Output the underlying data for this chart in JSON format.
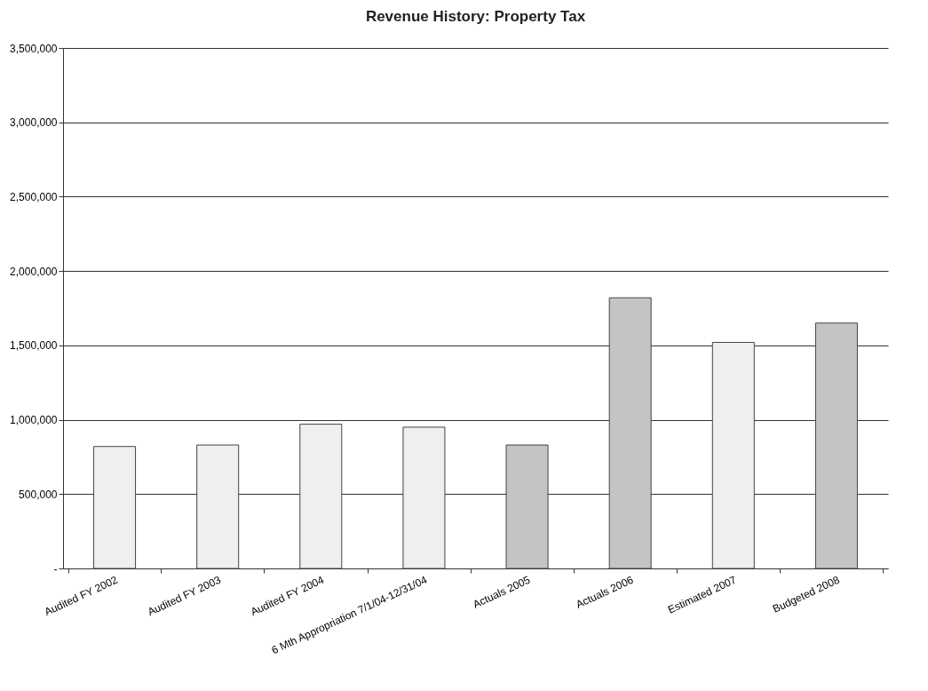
{
  "chart_data": {
    "type": "bar",
    "title": "Revenue History: Property Tax",
    "categories": [
      "Audited FY 2002",
      "Audited FY 2003",
      "Audited FY 2004",
      "6 Mth Appropriation  7/1/04-12/31/04",
      "Actuals 2005",
      "Actuals 2006",
      "Estimated 2007",
      "Budgeted 2008"
    ],
    "values": [
      820000,
      830000,
      970000,
      950000,
      830000,
      1820000,
      1520000,
      1650000
    ],
    "colors": [
      "#efefef",
      "#efefef",
      "#efefef",
      "#efefef",
      "#c4c4c4",
      "#c4c4c4",
      "#efefef",
      "#c4c4c4"
    ],
    "ylim": [
      0,
      3500000
    ],
    "yticks": [
      {
        "value": 0,
        "label": "-"
      },
      {
        "value": 500000,
        "label": "500,000"
      },
      {
        "value": 1000000,
        "label": "1,000,000"
      },
      {
        "value": 1500000,
        "label": "1,500,000"
      },
      {
        "value": 2000000,
        "label": "2,000,000"
      },
      {
        "value": 2500000,
        "label": "2,500,000"
      },
      {
        "value": 3000000,
        "label": "3,000,000"
      },
      {
        "value": 3500000,
        "label": "3,500,000"
      }
    ],
    "grid": "y"
  }
}
